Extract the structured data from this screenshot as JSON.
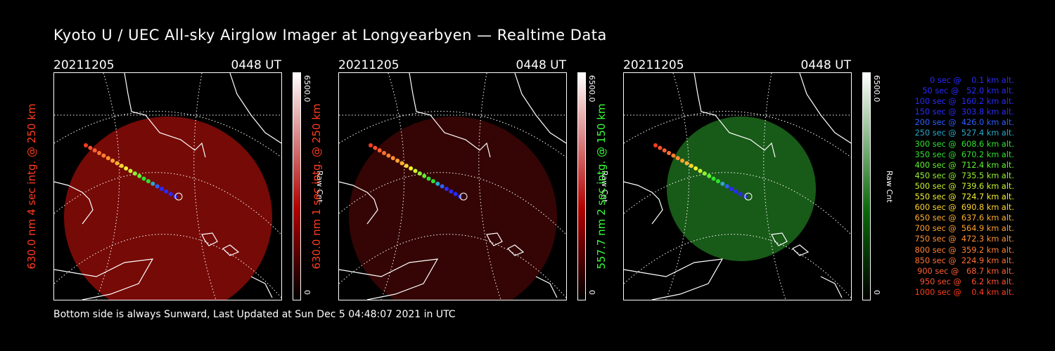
{
  "title": "Kyoto U / UEC All-sky Airglow Imager at Longyearbyen — Realtime Data",
  "footer": "Bottom side is always Sunward, Last Updated at Sun Dec  5 04:48:07 2021 in UTC",
  "panels": [
    {
      "date": "20211205",
      "time": "0448 UT",
      "ylabel": "630.0 nm 4 sec intg. @ 250 km",
      "label_color": "#ff3b1e",
      "cbar_max": "6500.0",
      "cbar_min": "0",
      "cbar_unit": "Raw Cnt",
      "cbar_top": "#ffffff",
      "cbar_bottom": "#b00000",
      "image_color": "#8b0c08",
      "image_opacity": "0.85"
    },
    {
      "date": "20211205",
      "time": "0448 UT",
      "ylabel": "630.0 nm 1 sec intg. @ 250 km",
      "label_color": "#ff3b1e",
      "cbar_max": "6500.0",
      "cbar_min": "0",
      "cbar_unit": "Raw Cnt",
      "cbar_top": "#ffffff",
      "cbar_bottom": "#b00000",
      "image_color": "#3a0604",
      "image_opacity": "0.9"
    },
    {
      "date": "20211205",
      "time": "0448 UT",
      "ylabel": "557.7 nm 2 sec intg. @ 150 km",
      "label_color": "#39ff39",
      "cbar_max": "6500.0",
      "cbar_min": "0",
      "cbar_unit": "Raw Cnt",
      "cbar_top": "#ffffff",
      "cbar_bottom": "#0a6a0a",
      "image_color": "#1c6a1c",
      "image_opacity": "0.85"
    }
  ],
  "legend": [
    {
      "text": "   0 sec @    0.1 km alt.",
      "color": "#2a2aff"
    },
    {
      "text": "  50 sec @   52.0 km alt.",
      "color": "#2a2aff"
    },
    {
      "text": " 100 sec @  160.2 km alt.",
      "color": "#2a2aff"
    },
    {
      "text": " 150 sec @  303.8 km alt.",
      "color": "#2a2aff"
    },
    {
      "text": " 200 sec @  426.0 km alt.",
      "color": "#2d5fff"
    },
    {
      "text": " 250 sec @  527.4 km alt.",
      "color": "#2aa8c8"
    },
    {
      "text": " 300 sec @  608.6 km alt.",
      "color": "#30e030"
    },
    {
      "text": " 350 sec @  670.2 km alt.",
      "color": "#30e030"
    },
    {
      "text": " 400 sec @  712.4 km alt.",
      "color": "#60f030"
    },
    {
      "text": " 450 sec @  735.5 km alt.",
      "color": "#90f030"
    },
    {
      "text": " 500 sec @  739.6 km alt.",
      "color": "#c8f030"
    },
    {
      "text": " 550 sec @  724.7 km alt.",
      "color": "#f0f030"
    },
    {
      "text": " 600 sec @  690.8 km alt.",
      "color": "#ffd430"
    },
    {
      "text": " 650 sec @  637.6 km alt.",
      "color": "#ffb030"
    },
    {
      "text": " 700 sec @  564.9 km alt.",
      "color": "#ffa030"
    },
    {
      "text": " 750 sec @  472.3 km alt.",
      "color": "#ff9030"
    },
    {
      "text": " 800 sec @  359.2 km alt.",
      "color": "#ff8030"
    },
    {
      "text": " 850 sec @  224.9 km alt.",
      "color": "#ff7030"
    },
    {
      "text": " 900 sec @   68.7 km alt.",
      "color": "#ff6030"
    },
    {
      "text": " 950 sec @    6.2 km alt.",
      "color": "#ff5030"
    },
    {
      "text": "1000 sec @    0.4 km alt.",
      "color": "#ff3b1e"
    }
  ]
}
